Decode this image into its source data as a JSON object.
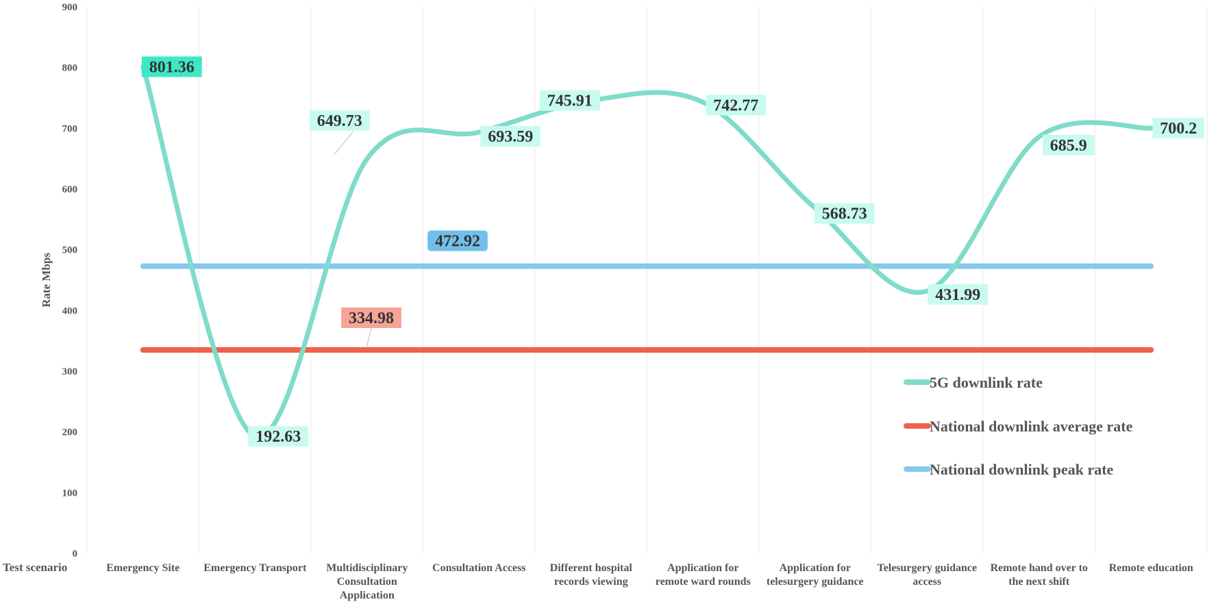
{
  "chart_data": {
    "type": "line",
    "xlabel": "Test scenario",
    "ylabel": "Rate  Mbps",
    "ylim": [
      0,
      900
    ],
    "yticks": [
      0,
      100,
      200,
      300,
      400,
      500,
      600,
      700,
      800,
      900
    ],
    "grid": "vertical",
    "legend_position": "bottom-right",
    "categories": [
      [
        "Emergency Site"
      ],
      [
        "Emergency Transport"
      ],
      [
        "Multidisciplinary",
        "Consultation",
        "Application"
      ],
      [
        "Consultation Access"
      ],
      [
        "Different hospital",
        "records  viewing"
      ],
      [
        "Application for",
        "remote ward rounds"
      ],
      [
        "Application for",
        "telesurgery guidance"
      ],
      [
        "Telesurgery guidance",
        "access"
      ],
      [
        "Remote hand over to",
        "the next shift"
      ],
      [
        "Remote education"
      ]
    ],
    "series": [
      {
        "name": "5G downlink rate",
        "color": "#7fdcc9",
        "smooth": true,
        "values": [
          801.36,
          192.63,
          649.73,
          693.59,
          745.91,
          742.77,
          568.73,
          431.99,
          685.9,
          700.2
        ],
        "labels": [
          "801.36",
          "192.63",
          "649.73",
          "693.59",
          "745.91",
          "742.77",
          "568.73",
          "431.99",
          "685.9",
          "700.2"
        ],
        "label_bg": "#c8fbef",
        "first_label_bg": "#3de8c8"
      },
      {
        "name": "National downlink average rate",
        "color": "#f0604a",
        "values": [
          334.98,
          334.98,
          334.98,
          334.98,
          334.98,
          334.98,
          334.98,
          334.98,
          334.98,
          334.98
        ],
        "label": "334.98",
        "label_bg": "#f6a497"
      },
      {
        "name": "National downlink peak rate",
        "color": "#86c8ef",
        "values": [
          472.92,
          472.92,
          472.92,
          472.92,
          472.92,
          472.92,
          472.92,
          472.92,
          472.92,
          472.92
        ],
        "label": "472.92",
        "label_bg": "#73bfec"
      }
    ]
  }
}
